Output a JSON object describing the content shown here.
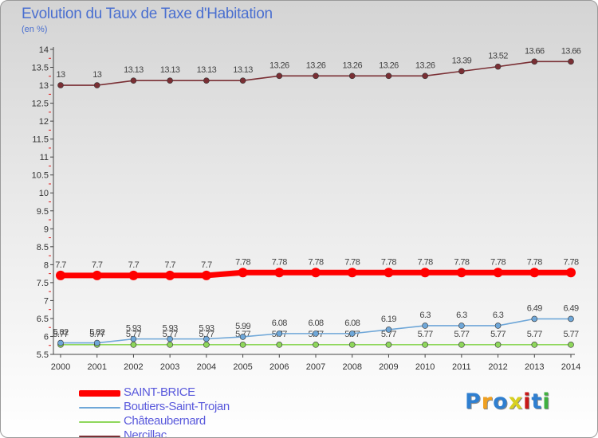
{
  "title": "Evolution du Taux de Taxe d'Habitation",
  "subtitle": "(en %)",
  "brand": "Proxiti",
  "brand_colors": [
    "#2f7fd0",
    "#f0a020",
    "#2f7fd0",
    "#d8d020",
    "#c81818",
    "#2f7fd0",
    "#40b040"
  ],
  "chart_data": {
    "type": "line",
    "x": [
      2000,
      2001,
      2002,
      2003,
      2004,
      2005,
      2006,
      2007,
      2008,
      2009,
      2010,
      2011,
      2012,
      2013,
      2014
    ],
    "ylim": [
      5.5,
      14
    ],
    "yticks": [
      "5.5",
      "6",
      "6.5",
      "7",
      "7.5",
      "8",
      "8.5",
      "9",
      "9.5",
      "10",
      "10.5",
      "11",
      "11.5",
      "12",
      "12.5",
      "13",
      "13.5",
      "14"
    ],
    "grid": false,
    "legend_position": "bottom-left",
    "series": [
      {
        "name": "SAINT-BRICE",
        "color": "#ff0000",
        "values": [
          7.7,
          7.7,
          7.7,
          7.7,
          7.7,
          7.78,
          7.78,
          7.78,
          7.78,
          7.78,
          7.78,
          7.78,
          7.78,
          7.78,
          7.78
        ],
        "labels": [
          "7.7",
          "7.7",
          "7.7",
          "7.7",
          "7.7",
          "7.78",
          "7.78",
          "7.78",
          "7.78",
          "7.78",
          "7.78",
          "7.78",
          "7.78",
          "7.78",
          "7.78"
        ]
      },
      {
        "name": "Boutiers-Saint-Trojan",
        "color": "#6fa7d8",
        "values": [
          5.82,
          5.82,
          5.93,
          5.93,
          5.93,
          5.99,
          6.08,
          6.08,
          6.08,
          6.19,
          6.3,
          6.3,
          6.3,
          6.49,
          6.49
        ],
        "labels": [
          "5.82",
          "5.82",
          "5.93",
          "5.93",
          "5.93",
          "5.99",
          "6.08",
          "6.08",
          "6.08",
          "6.19",
          "6.3",
          "6.3",
          "6.3",
          "6.49",
          "6.49"
        ]
      },
      {
        "name": "Châteaubernard",
        "color": "#8ed75b",
        "values": [
          5.77,
          5.77,
          5.77,
          5.77,
          5.77,
          5.77,
          5.77,
          5.77,
          5.77,
          5.77,
          5.77,
          5.77,
          5.77,
          5.77,
          5.77
        ],
        "labels": [
          "5.77",
          "5.77",
          "5.77",
          "5.77",
          "5.77",
          "5.77",
          "5.77",
          "5.77",
          "5.77",
          "5.77",
          "5.77",
          "5.77",
          "5.77",
          "5.77",
          "5.77"
        ]
      },
      {
        "name": "Nercillac",
        "color": "#7a2f34",
        "values": [
          13,
          13,
          13.13,
          13.13,
          13.13,
          13.13,
          13.26,
          13.26,
          13.26,
          13.26,
          13.26,
          13.39,
          13.52,
          13.66,
          13.66
        ],
        "labels": [
          "13",
          "13",
          "13.13",
          "13.13",
          "13.13",
          "13.13",
          "13.26",
          "13.26",
          "13.26",
          "13.26",
          "13.26",
          "13.39",
          "13.52",
          "13.66",
          "13.66"
        ]
      }
    ]
  }
}
